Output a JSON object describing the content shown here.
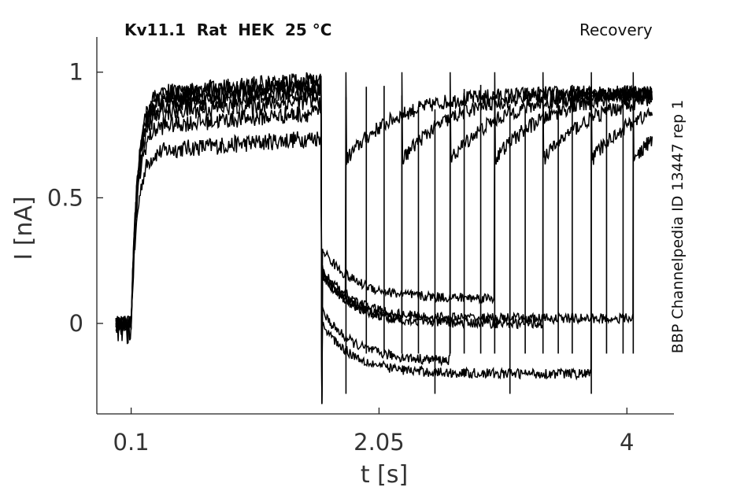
{
  "chart_data": {
    "type": "line",
    "title": "Kv11.1  Rat  HEK  25 °C",
    "subtitle": "Recovery",
    "annotation": "BBP Channelpedia ID 13447 rep 1",
    "xlabel": "t [s]",
    "ylabel": "I [nA]",
    "xlim": [
      -0.17,
      4.37
    ],
    "ylim": [
      -0.36,
      1.14
    ],
    "x_ticks": [
      0.1,
      2.05,
      4
    ],
    "x_tick_labels": [
      "0.1",
      "2.05",
      "4"
    ],
    "y_ticks": [
      0,
      0.5,
      1
    ],
    "y_tick_labels": [
      "0",
      "0.5",
      "1"
    ],
    "grid": false,
    "line_color": "#000000",
    "protocol": {
      "holding_start": -0.02,
      "step_on": 0.1,
      "step_off": 1.6,
      "recovery_test_starts": [
        1.79,
        1.95,
        2.09,
        2.23,
        2.36,
        2.49,
        2.61,
        2.72,
        2.85,
        2.96,
        3.08,
        3.2,
        3.34,
        3.46,
        3.57,
        3.72,
        3.84,
        3.97,
        4.05
      ],
      "trace_end": 4.2
    },
    "series": [
      {
        "plateau": 0.68,
        "tail": 0.0
      },
      {
        "plateau": 0.78,
        "tail": 0.0
      },
      {
        "plateau": 0.83,
        "tail": -0.15
      },
      {
        "plateau": 0.86,
        "tail": 0.1
      },
      {
        "plateau": 0.88,
        "tail": 0.0
      },
      {
        "plateau": 0.9,
        "tail": -0.2
      },
      {
        "plateau": 0.91,
        "tail": 0.02
      }
    ]
  }
}
